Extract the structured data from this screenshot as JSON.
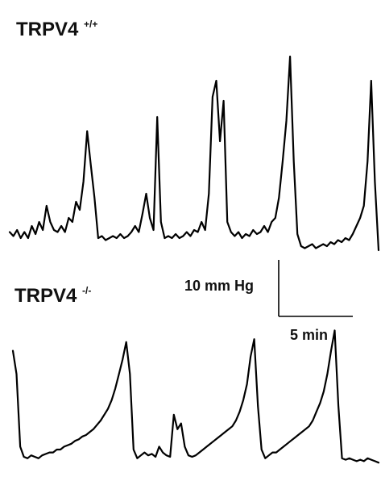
{
  "chart_data": {
    "type": "line",
    "panels": [
      {
        "name": "TRPV4",
        "superscript": "+/+",
        "color": "#000000",
        "x": [
          0,
          1,
          2,
          3,
          4,
          5,
          6,
          7,
          8,
          9,
          10,
          11,
          12,
          13,
          14,
          15,
          16,
          17,
          18,
          19,
          20,
          21,
          22,
          23,
          24,
          25,
          26,
          27,
          28,
          29,
          30,
          31,
          32,
          33,
          34,
          35,
          36,
          37,
          38,
          39,
          40,
          41,
          42,
          43,
          44,
          45,
          46,
          47,
          48,
          49,
          50,
          51,
          52,
          53,
          54,
          55,
          56,
          57,
          58,
          59,
          60,
          61,
          62,
          63,
          64,
          65,
          66,
          67,
          68,
          69,
          70,
          71,
          72,
          73,
          74,
          75,
          76,
          77,
          78,
          79,
          80,
          81,
          82,
          83,
          84,
          85,
          86,
          87,
          88,
          89,
          90,
          91,
          92,
          93,
          94,
          95,
          96,
          97,
          98,
          99,
          100
        ],
        "y": [
          0.05,
          0.03,
          0.06,
          0.02,
          0.05,
          0.02,
          0.08,
          0.04,
          0.1,
          0.06,
          0.18,
          0.1,
          0.06,
          0.05,
          0.08,
          0.05,
          0.12,
          0.1,
          0.2,
          0.16,
          0.3,
          0.55,
          0.38,
          0.22,
          0.02,
          0.03,
          0.01,
          0.02,
          0.03,
          0.02,
          0.04,
          0.02,
          0.03,
          0.05,
          0.08,
          0.05,
          0.14,
          0.24,
          0.12,
          0.06,
          0.62,
          0.1,
          0.02,
          0.03,
          0.02,
          0.04,
          0.02,
          0.03,
          0.05,
          0.03,
          0.06,
          0.05,
          0.1,
          0.06,
          0.24,
          0.72,
          0.8,
          0.5,
          0.7,
          0.1,
          0.05,
          0.03,
          0.05,
          0.02,
          0.04,
          0.03,
          0.06,
          0.04,
          0.05,
          0.08,
          0.05,
          0.1,
          0.12,
          0.22,
          0.4,
          0.6,
          0.92,
          0.4,
          0.04,
          -0.02,
          -0.03,
          -0.02,
          -0.01,
          -0.03,
          -0.02,
          -0.01,
          -0.02,
          0.0,
          -0.01,
          0.01,
          0.0,
          0.02,
          0.01,
          0.04,
          0.08,
          0.12,
          0.18,
          0.4,
          0.8,
          0.3,
          -0.04
        ]
      },
      {
        "name": "TRPV4",
        "superscript": "-/-",
        "color": "#000000",
        "x": [
          0,
          1,
          2,
          3,
          4,
          5,
          6,
          7,
          8,
          9,
          10,
          11,
          12,
          13,
          14,
          15,
          16,
          17,
          18,
          19,
          20,
          21,
          22,
          23,
          24,
          25,
          26,
          27,
          28,
          29,
          30,
          31,
          32,
          33,
          34,
          35,
          36,
          37,
          38,
          39,
          40,
          41,
          42,
          43,
          44,
          45,
          46,
          47,
          48,
          49,
          50,
          51,
          52,
          53,
          54,
          55,
          56,
          57,
          58,
          59,
          60,
          61,
          62,
          63,
          64,
          65,
          66,
          67,
          68,
          69,
          70,
          71,
          72,
          73,
          74,
          75,
          76,
          77,
          78,
          79,
          80,
          81,
          82,
          83,
          84,
          85,
          86,
          87,
          88,
          89,
          90,
          91,
          92,
          93,
          94,
          95,
          96,
          97,
          98,
          99,
          100
        ],
        "y": [
          0.78,
          0.62,
          0.12,
          0.05,
          0.04,
          0.06,
          0.05,
          0.04,
          0.06,
          0.07,
          0.08,
          0.08,
          0.1,
          0.1,
          0.12,
          0.13,
          0.14,
          0.16,
          0.17,
          0.19,
          0.2,
          0.22,
          0.24,
          0.27,
          0.3,
          0.34,
          0.38,
          0.44,
          0.52,
          0.62,
          0.72,
          0.84,
          0.62,
          0.1,
          0.04,
          0.06,
          0.08,
          0.06,
          0.07,
          0.05,
          0.12,
          0.08,
          0.06,
          0.05,
          0.34,
          0.24,
          0.28,
          0.12,
          0.06,
          0.05,
          0.06,
          0.08,
          0.1,
          0.12,
          0.14,
          0.16,
          0.18,
          0.2,
          0.22,
          0.24,
          0.26,
          0.3,
          0.36,
          0.44,
          0.55,
          0.74,
          0.86,
          0.4,
          0.1,
          0.04,
          0.06,
          0.08,
          0.08,
          0.1,
          0.12,
          0.14,
          0.16,
          0.18,
          0.2,
          0.22,
          0.24,
          0.26,
          0.3,
          0.36,
          0.42,
          0.5,
          0.62,
          0.78,
          0.92,
          0.4,
          0.04,
          0.03,
          0.04,
          0.03,
          0.02,
          0.03,
          0.02,
          0.04,
          0.03,
          0.02,
          0.01
        ]
      }
    ],
    "scale_bar": {
      "y_label": "10 mm Hg",
      "x_label": "5 min",
      "y_value": 10,
      "x_value": 5
    },
    "title": "",
    "xlabel": "",
    "ylabel": ""
  }
}
